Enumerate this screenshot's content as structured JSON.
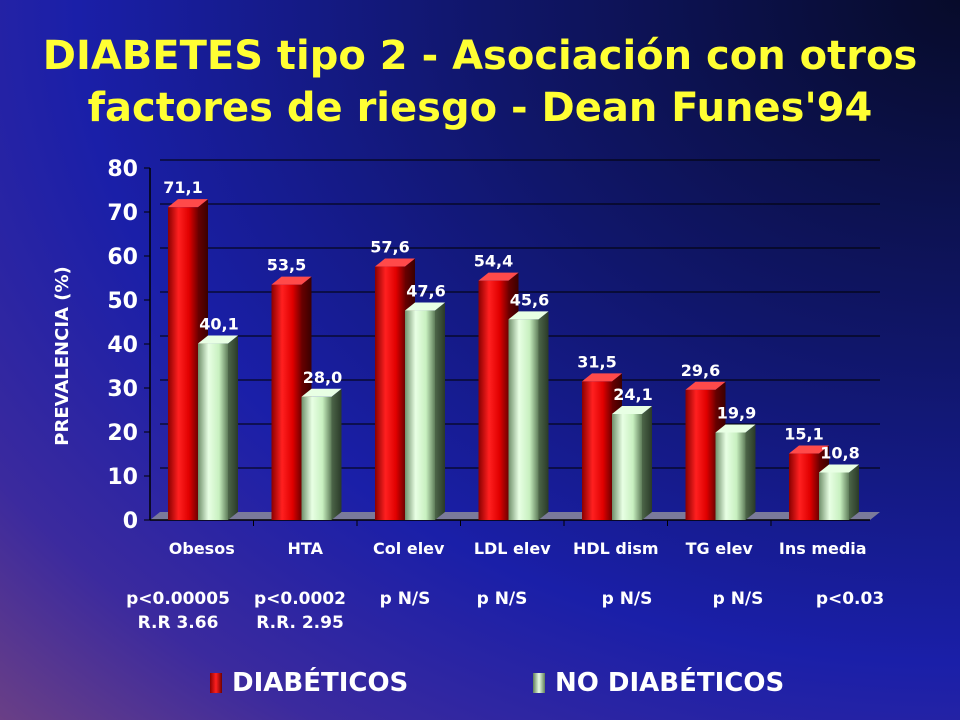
{
  "chart_data": {
    "type": "bar",
    "title": "DIABETES tipo 2 - Asociación con otros factores de riesgo - Dean Funes'94",
    "title_lines": [
      "DIABETES tipo 2 - Asociación con otros",
      "factores de riesgo - Dean Funes'94"
    ],
    "ylabel": "PREVALENCIA (%)",
    "xlabel": "",
    "ylim": [
      0,
      80
    ],
    "yticks": [
      0,
      10,
      20,
      30,
      40,
      50,
      60,
      70,
      80
    ],
    "grid": true,
    "legend_position": "bottom",
    "categories": [
      "Obesos",
      "HTA",
      "Col elev",
      "LDL elev",
      "HDL dism",
      "TG elev",
      "Ins media"
    ],
    "series": [
      {
        "name": "DIABÉTICOS",
        "values": [
          71.1,
          53.5,
          57.6,
          54.4,
          31.5,
          29.6,
          15.1
        ],
        "labels": [
          "71,1",
          "53,5",
          "57,6",
          "54,4",
          "31,5",
          "29,6",
          "15,1"
        ],
        "color": "#e00000"
      },
      {
        "name": "NO DIABÉTICOS",
        "values": [
          40.1,
          28.0,
          47.6,
          45.6,
          24.1,
          19.9,
          10.8
        ],
        "labels": [
          "40,1",
          "28,0",
          "47,6",
          "45,6",
          "24,1",
          "19,9",
          "10,8"
        ],
        "color": "#c8f0c0"
      }
    ],
    "annotations": [
      {
        "lines": [
          "p<0.00005",
          "R.R 3.66"
        ]
      },
      {
        "lines": [
          "p<0.0002",
          "R.R. 2.95"
        ]
      },
      {
        "lines": [
          "p N/S"
        ]
      },
      {
        "lines": [
          "p N/S"
        ]
      },
      {
        "lines": [
          "p N/S"
        ]
      },
      {
        "lines": [
          "p N/S"
        ]
      },
      {
        "lines": [
          "p<0.03"
        ]
      }
    ]
  },
  "colors": {
    "title": "#ffff33",
    "text": "#ffffff",
    "diabeticos": "#e00000",
    "no_diabeticos": "#c8f0c0"
  }
}
